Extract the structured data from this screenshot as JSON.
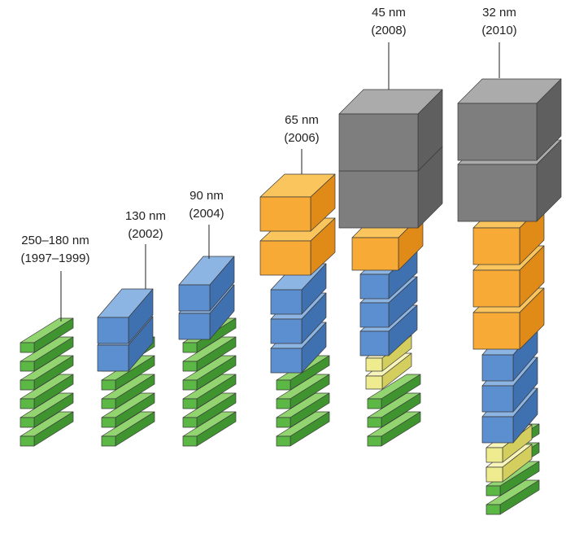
{
  "columns": [
    {
      "lines": [
        "250–180 nm",
        "(1997–1999)"
      ]
    },
    {
      "lines": [
        "130 nm",
        "(2002)"
      ]
    },
    {
      "lines": [
        "90 nm",
        "(2004)"
      ]
    },
    {
      "lines": [
        "65 nm",
        "(2006)"
      ]
    },
    {
      "lines": [
        "45 nm",
        "(2008)"
      ]
    },
    {
      "lines": [
        "32 nm",
        "(2010)"
      ]
    }
  ]
}
